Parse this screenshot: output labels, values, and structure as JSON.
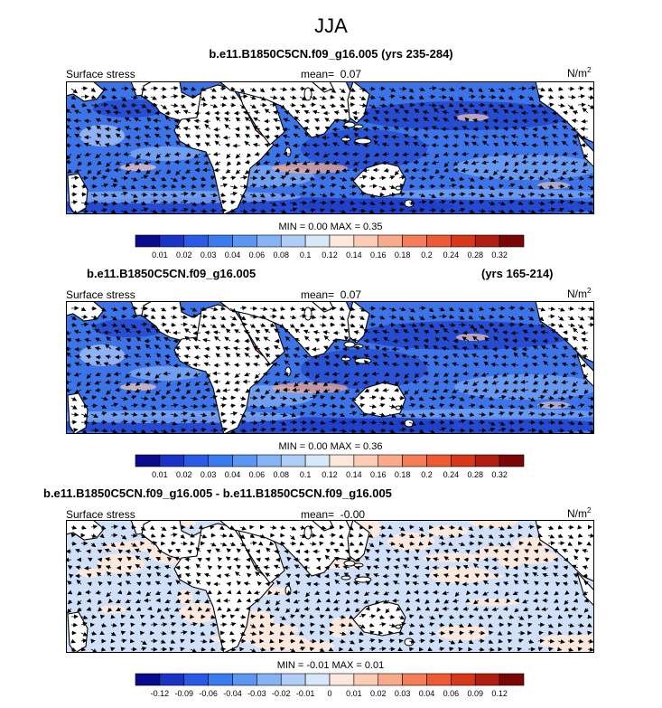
{
  "season": "JJA",
  "panels": [
    {
      "title": "b.e11.B1850C5CN.f09_g16.005 (yrs 235-284)",
      "title_right": "",
      "field": "Surface stress",
      "mean_label": "mean=",
      "mean_value": "0.07",
      "units": "N/m",
      "units_sup": "2",
      "min_max": "MIN =  0.00 MAX =  0.35",
      "kind": "abs"
    },
    {
      "title": "b.e11.B1850C5CN.f09_g16.005",
      "title_right": "(yrs 165-214)",
      "field": "Surface stress",
      "mean_label": "mean=",
      "mean_value": "0.07",
      "units": "N/m",
      "units_sup": "2",
      "min_max": "MIN =  0.00 MAX =  0.36",
      "kind": "abs"
    },
    {
      "title": "b.e11.B1850C5CN.f09_g16.005 - b.e11.B1850C5CN.f09_g16.005",
      "title_right": "",
      "field": "Surface stress",
      "mean_label": "mean=",
      "mean_value": "-0.00",
      "units": "N/m",
      "units_sup": "2",
      "min_max": "MIN = -0.01 MAX =  0.01",
      "kind": "diff"
    }
  ],
  "colorbars": {
    "abs": {
      "colors": [
        "#0a0a8c",
        "#1a34c8",
        "#2a5ae6",
        "#3a7cf0",
        "#5a96f2",
        "#86b2f6",
        "#b0cdf8",
        "#d8e8fb",
        "#fde8dc",
        "#fcccb4",
        "#f9aa8a",
        "#f47e5a",
        "#ee5a34",
        "#d8381a",
        "#b01e10",
        "#7a0606"
      ],
      "labels": [
        "0.01",
        "0.02",
        "0.03",
        "0.04",
        "0.06",
        "0.08",
        "0.1",
        "0.12",
        "0.14",
        "0.16",
        "0.18",
        "0.2",
        "0.24",
        "0.28",
        "0.32"
      ]
    },
    "diff": {
      "colors": [
        "#0a0a8c",
        "#1a34c8",
        "#2a5ae6",
        "#3a7cf0",
        "#5a96f2",
        "#86b2f6",
        "#b0cdf8",
        "#d8e8fb",
        "#fde8dc",
        "#fcccb4",
        "#f9aa8a",
        "#f47e5a",
        "#ee5a34",
        "#d8381a",
        "#b01e10",
        "#7a0606"
      ],
      "labels": [
        "-0.12",
        "-0.09",
        "-0.06",
        "-0.04",
        "-0.03",
        "-0.02",
        "-0.01",
        "0",
        "0.01",
        "0.02",
        "0.03",
        "0.04",
        "0.06",
        "0.09",
        "0.12"
      ]
    }
  }
}
